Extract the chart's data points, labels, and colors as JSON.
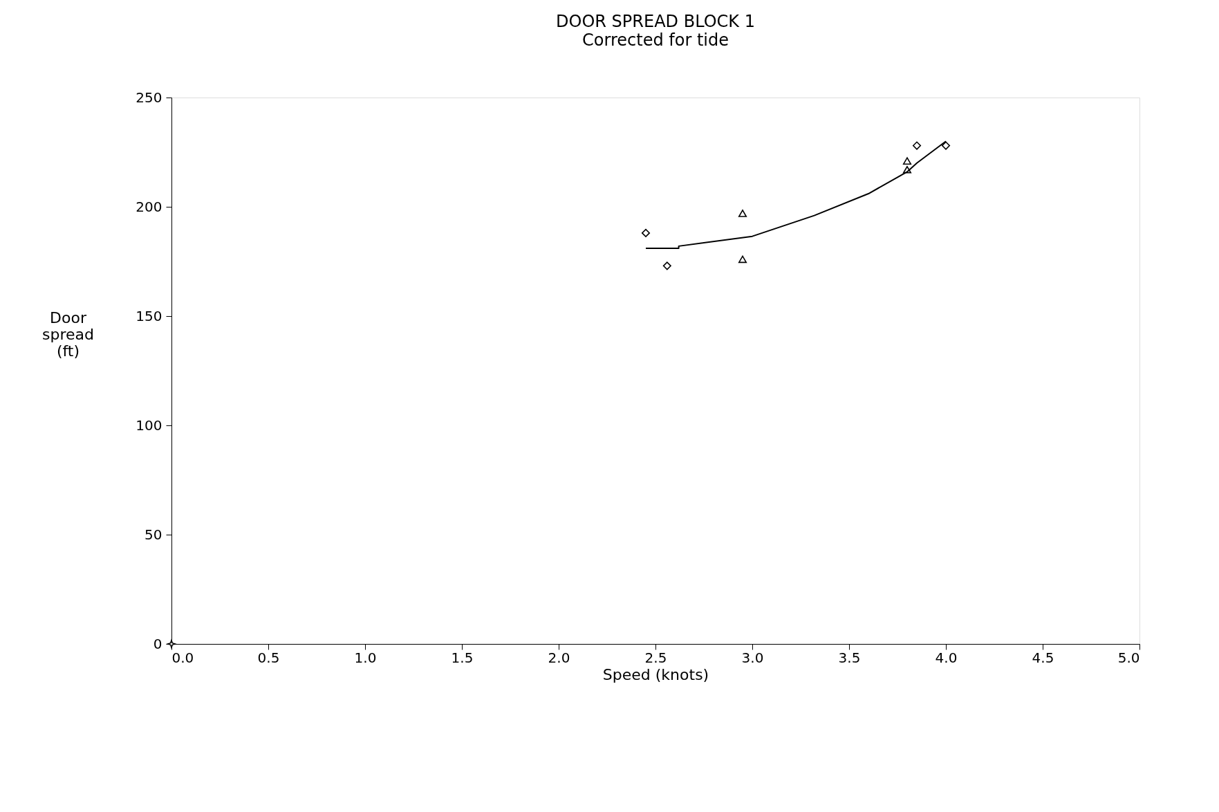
{
  "chart_data": {
    "type": "scatter",
    "title": "DOOR  SPREAD BLOCK 1",
    "subtitle": "Corrected for tide",
    "xlabel": "Speed (knots)",
    "ylabel": "Door\nspread\n(ft)",
    "xlim": [
      0,
      5
    ],
    "ylim": [
      0,
      250
    ],
    "xticks": [
      {
        "value": 0,
        "label": "0.0"
      },
      0.5,
      {
        "value": 1,
        "label": "1.0"
      },
      1.5,
      {
        "value": 2,
        "label": "2.0"
      },
      2.5,
      {
        "value": 3,
        "label": "3.0"
      },
      3.5,
      {
        "value": 4,
        "label": "4.0"
      },
      4.5,
      {
        "value": 5,
        "label": "5.0"
      }
    ],
    "yticks": [
      0,
      50,
      100,
      150,
      200,
      250
    ],
    "grid": false,
    "series": [
      {
        "marker": "diamond",
        "color": "#000000",
        "x": [
          2.45,
          2.56,
          3.85,
          4.0
        ],
        "values": [
          188,
          173,
          228,
          228
        ]
      },
      {
        "marker": "triangle",
        "color": "#000000",
        "x": [
          2.95,
          2.95,
          3.8,
          3.8
        ],
        "values": [
          197,
          176,
          221,
          217
        ]
      },
      {
        "marker": "star",
        "color": "#000000",
        "x": [
          0
        ],
        "values": [
          0
        ]
      },
      {
        "type": "line",
        "color": "#000000",
        "x": [
          2.45,
          2.62,
          2.62,
          3.0,
          3.32,
          3.6,
          3.8,
          3.85,
          4.0
        ],
        "values": [
          181,
          181,
          182,
          186.5,
          196,
          206,
          216,
          220,
          230
        ]
      }
    ]
  }
}
